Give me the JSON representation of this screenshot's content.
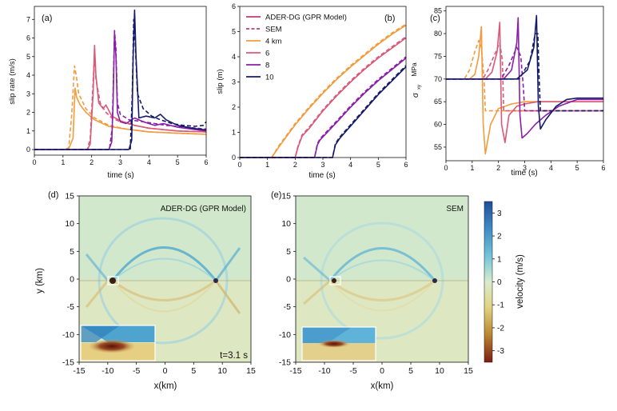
{
  "chart_data": [
    {
      "id": "a",
      "type": "line",
      "panel_label": "(a)",
      "xlabel": "time (s)",
      "ylabel": "slip rate (m/s)",
      "xlim": [
        0,
        6
      ],
      "ylim": [
        -0.3,
        7.7
      ],
      "xticks": [
        "0",
        "1",
        "2",
        "3",
        "4",
        "5",
        "6"
      ],
      "yticks": [
        "0",
        "1",
        "2",
        "3",
        "4",
        "5",
        "6",
        "7"
      ],
      "series": [
        {
          "method": "ADER-DG",
          "dist": "4 km",
          "color": "#f39b3c",
          "dash": false,
          "x": [
            0,
            1.05,
            1.2,
            1.35,
            1.42,
            1.48,
            1.6,
            1.8,
            2.1,
            2.6,
            3.2,
            4,
            5,
            6
          ],
          "y": [
            0,
            0,
            0.05,
            0.6,
            3.3,
            2.8,
            2.4,
            2.0,
            1.6,
            1.25,
            1.1,
            0.95,
            0.88,
            0.82
          ]
        },
        {
          "method": "SEM",
          "dist": "4 km",
          "color": "#f39b3c",
          "dash": true,
          "x": [
            0,
            1.05,
            1.2,
            1.3,
            1.4,
            1.46,
            1.55,
            1.8,
            2.1,
            2.6,
            3.2,
            4,
            5,
            6
          ],
          "y": [
            0,
            0,
            0.1,
            1.8,
            4.5,
            4.0,
            3.0,
            2.2,
            1.7,
            1.3,
            1.1,
            0.95,
            0.88,
            0.82
          ]
        },
        {
          "method": "ADER-DG",
          "dist": "6 km",
          "color": "#d95a78",
          "dash": false,
          "x": [
            0,
            1.85,
            1.95,
            2.05,
            2.1,
            2.15,
            2.25,
            2.4,
            2.5,
            2.7,
            3,
            3.5,
            4,
            5,
            6
          ],
          "y": [
            0,
            0,
            0.3,
            3.0,
            5.6,
            4.0,
            2.5,
            2.2,
            2.4,
            1.8,
            1.55,
            1.3,
            1.15,
            1.0,
            0.95
          ]
        },
        {
          "method": "SEM",
          "dist": "6 km",
          "color": "#d95a78",
          "dash": true,
          "x": [
            0,
            1.85,
            1.95,
            2.05,
            2.1,
            2.15,
            2.3,
            2.5,
            2.7,
            3,
            3.5,
            4,
            5,
            6
          ],
          "y": [
            0,
            0,
            0.6,
            3.6,
            5.2,
            3.8,
            2.5,
            2.0,
            1.7,
            1.5,
            1.3,
            1.15,
            1.0,
            0.95
          ]
        },
        {
          "method": "ADER-DG",
          "dist": "8 km",
          "color": "#8a1fa8",
          "dash": false,
          "x": [
            0,
            2.6,
            2.7,
            2.75,
            2.8,
            2.85,
            2.9,
            3.0,
            3.2,
            3.5,
            3.8,
            4.2,
            4.5,
            5,
            5.5,
            6
          ],
          "y": [
            0,
            0,
            0.4,
            2.5,
            6.3,
            5.0,
            2.0,
            1.5,
            1.4,
            1.7,
            1.5,
            1.3,
            1.4,
            1.2,
            1.1,
            1.0
          ]
        },
        {
          "method": "SEM",
          "dist": "8 km",
          "color": "#8a1fa8",
          "dash": true,
          "x": [
            0,
            2.62,
            2.72,
            2.8,
            2.85,
            2.9,
            3.0,
            3.3,
            3.8,
            4.2,
            4.6,
            5,
            6
          ],
          "y": [
            0,
            0,
            1.2,
            6.4,
            5.4,
            2.5,
            1.9,
            1.6,
            1.5,
            1.4,
            1.3,
            1.25,
            1.1
          ]
        },
        {
          "method": "ADER-DG",
          "dist": "10 km",
          "color": "#151b6b",
          "dash": false,
          "x": [
            0,
            3.3,
            3.4,
            3.45,
            3.5,
            3.55,
            3.65,
            3.9,
            4.2,
            4.4,
            4.6,
            5,
            5.5,
            6
          ],
          "y": [
            0,
            0,
            0.5,
            5.0,
            7.5,
            5.0,
            1.7,
            1.8,
            1.7,
            1.9,
            1.6,
            1.3,
            1.15,
            1.05
          ]
        },
        {
          "method": "SEM",
          "dist": "10 km",
          "color": "#151b6b",
          "dash": true,
          "x": [
            0,
            3.35,
            3.42,
            3.47,
            3.52,
            3.6,
            3.8,
            4.1,
            4.4,
            4.8,
            5.2,
            5.6,
            5.9,
            6
          ],
          "y": [
            0,
            0,
            3.0,
            7.0,
            5.8,
            3.0,
            2.2,
            1.8,
            1.6,
            1.4,
            1.3,
            1.25,
            1.3,
            1.5
          ]
        }
      ]
    },
    {
      "id": "b",
      "type": "line",
      "panel_label": "(b)",
      "xlabel": "time (s)",
      "ylabel": "slip (m)",
      "xlim": [
        0,
        6
      ],
      "ylim": [
        0,
        6
      ],
      "xticks": [
        "0",
        "1",
        "2",
        "3",
        "4",
        "5",
        "6"
      ],
      "yticks": [
        "0",
        "1",
        "2",
        "3",
        "4",
        "5",
        "6"
      ],
      "legend": {
        "placement": "top-left",
        "entries": [
          {
            "label": "ADER-DG (GPR Model)",
            "color": "#c0397f",
            "dash": false
          },
          {
            "label": "SEM",
            "color": "#c0397f",
            "dash": true
          },
          {
            "label": "4 km",
            "color": "#f39b3c",
            "dash": false
          },
          {
            "label": "6",
            "color": "#d95a78",
            "dash": false
          },
          {
            "label": "8",
            "color": "#8a1fa8",
            "dash": false
          },
          {
            "label": "10",
            "color": "#151b6b",
            "dash": false
          }
        ]
      },
      "series": [
        {
          "method": "ADER-DG",
          "dist": "4 km",
          "color": "#f39b3c",
          "dash": false,
          "x": [
            0,
            1.15,
            1.4,
            1.7,
            2,
            2.5,
            3,
            3.5,
            4,
            4.5,
            5,
            5.5,
            6
          ],
          "y": [
            0,
            0,
            0.4,
            0.85,
            1.3,
            1.95,
            2.55,
            3.1,
            3.6,
            4.05,
            4.5,
            4.9,
            5.25
          ]
        },
        {
          "method": "SEM",
          "dist": "4 km",
          "color": "#f39b3c",
          "dash": true,
          "x": [
            0,
            1.15,
            1.4,
            1.7,
            2,
            2.5,
            3,
            3.5,
            4,
            4.5,
            5,
            5.5,
            6
          ],
          "y": [
            0,
            0,
            0.45,
            0.9,
            1.35,
            2.0,
            2.6,
            3.15,
            3.65,
            4.1,
            4.55,
            4.95,
            5.3
          ]
        },
        {
          "method": "ADER-DG",
          "dist": "6 km",
          "color": "#d95a78",
          "dash": false,
          "x": [
            0,
            2.0,
            2.1,
            2.25,
            2.5,
            3,
            3.5,
            4,
            4.5,
            5,
            5.5,
            6
          ],
          "y": [
            0,
            0,
            0.4,
            0.85,
            1.15,
            1.85,
            2.45,
            3.0,
            3.5,
            3.95,
            4.35,
            4.75
          ]
        },
        {
          "method": "SEM",
          "dist": "6 km",
          "color": "#d95a78",
          "dash": true,
          "x": [
            0,
            2.0,
            2.1,
            2.25,
            2.5,
            3,
            3.5,
            4,
            4.5,
            5,
            5.5,
            6
          ],
          "y": [
            0,
            0,
            0.45,
            0.9,
            1.2,
            1.9,
            2.5,
            3.05,
            3.55,
            4.0,
            4.4,
            4.8
          ]
        },
        {
          "method": "ADER-DG",
          "dist": "8 km",
          "color": "#8a1fa8",
          "dash": false,
          "x": [
            0,
            2.7,
            2.8,
            2.9,
            3.2,
            3.5,
            4,
            4.5,
            5,
            5.5,
            6
          ],
          "y": [
            0,
            0,
            0.5,
            0.7,
            1.05,
            1.4,
            2.0,
            2.55,
            3.05,
            3.5,
            3.95
          ]
        },
        {
          "method": "SEM",
          "dist": "8 km",
          "color": "#8a1fa8",
          "dash": true,
          "x": [
            0,
            2.7,
            2.8,
            2.9,
            3.2,
            3.5,
            4,
            4.5,
            5,
            5.5,
            6
          ],
          "y": [
            0,
            0,
            0.55,
            0.75,
            1.1,
            1.45,
            2.05,
            2.6,
            3.1,
            3.55,
            4.0
          ]
        },
        {
          "method": "ADER-DG",
          "dist": "10 km",
          "color": "#151b6b",
          "dash": false,
          "x": [
            0,
            3.35,
            3.45,
            3.6,
            3.8,
            4.2,
            4.6,
            5,
            5.5,
            6
          ],
          "y": [
            0,
            0,
            0.5,
            0.75,
            1.0,
            1.5,
            2.0,
            2.5,
            3.05,
            3.6
          ]
        },
        {
          "method": "SEM",
          "dist": "10 km",
          "color": "#151b6b",
          "dash": true,
          "x": [
            0,
            3.35,
            3.45,
            3.6,
            3.8,
            4.2,
            4.6,
            5,
            5.5,
            6
          ],
          "y": [
            0,
            0,
            0.55,
            0.8,
            1.05,
            1.55,
            2.05,
            2.55,
            3.1,
            3.65
          ]
        }
      ]
    },
    {
      "id": "c",
      "type": "line",
      "panel_label": "(c)",
      "xlabel": "time (s)",
      "ylabel": "MPa",
      "ylabel_symbol": "σ",
      "ylabel_subscript": "xy",
      "xlim": [
        0,
        6
      ],
      "ylim": [
        52,
        86
      ],
      "xticks": [
        "0",
        "1",
        "2",
        "3",
        "4",
        "5",
        "6"
      ],
      "yticks": [
        "55",
        "60",
        "65",
        "70",
        "75",
        "80",
        "85"
      ],
      "series": [
        {
          "method": "ADER-DG",
          "dist": "4 km",
          "color": "#f39b3c",
          "dash": false,
          "x": [
            0,
            0.9,
            1.1,
            1.25,
            1.35,
            1.42,
            1.5,
            1.7,
            2,
            2.5,
            3,
            4,
            5,
            6
          ],
          "y": [
            70,
            70,
            71,
            75,
            81.5,
            60,
            53.5,
            60,
            63.5,
            64.5,
            65,
            65,
            65,
            65
          ]
        },
        {
          "method": "SEM",
          "dist": "4 km",
          "color": "#f39b3c",
          "dash": true,
          "x": [
            0,
            0.7,
            0.9,
            1.1,
            1.25,
            1.35,
            1.45,
            1.5,
            6
          ],
          "y": [
            70,
            70,
            72,
            76,
            78.5,
            77,
            70,
            63,
            63
          ]
        },
        {
          "method": "ADER-DG",
          "dist": "6 km",
          "color": "#d95a78",
          "dash": false,
          "x": [
            0,
            1.5,
            1.75,
            1.95,
            2.05,
            2.12,
            2.25,
            2.4,
            2.7,
            3,
            3.5,
            4,
            6
          ],
          "y": [
            70,
            70,
            71.5,
            76,
            82.5,
            60,
            56,
            62,
            64,
            64.5,
            65,
            65,
            65
          ]
        },
        {
          "method": "SEM",
          "dist": "6 km",
          "color": "#d95a78",
          "dash": true,
          "x": [
            0,
            1.4,
            1.6,
            1.9,
            2.05,
            2.15,
            2.2,
            6
          ],
          "y": [
            70,
            70,
            72,
            76,
            78,
            74,
            63,
            63
          ]
        },
        {
          "method": "ADER-DG",
          "dist": "8 km",
          "color": "#8a1fa8",
          "dash": false,
          "x": [
            0,
            2.2,
            2.5,
            2.7,
            2.75,
            2.82,
            2.9,
            3.1,
            3.4,
            3.8,
            4.3,
            5,
            6
          ],
          "y": [
            70,
            70,
            72,
            78,
            83.5,
            62,
            57,
            58,
            60,
            62,
            64,
            65.5,
            65.5
          ]
        },
        {
          "method": "SEM",
          "dist": "8 km",
          "color": "#8a1fa8",
          "dash": true,
          "x": [
            0,
            2.1,
            2.4,
            2.7,
            2.85,
            2.95,
            3.0,
            6
          ],
          "y": [
            70,
            70,
            73,
            77,
            75,
            68,
            63,
            63
          ]
        },
        {
          "method": "ADER-DG",
          "dist": "10 km",
          "color": "#151b6b",
          "dash": false,
          "x": [
            0,
            2.7,
            3.1,
            3.35,
            3.45,
            3.52,
            3.6,
            3.8,
            4.2,
            4.6,
            5,
            6
          ],
          "y": [
            70,
            70,
            72,
            77,
            84,
            64,
            59,
            61,
            64,
            65.5,
            65.8,
            65.8
          ]
        },
        {
          "method": "SEM",
          "dist": "10 km",
          "color": "#151b6b",
          "dash": true,
          "x": [
            0,
            2.8,
            3.2,
            3.4,
            3.5,
            3.55,
            3.6,
            6
          ],
          "y": [
            70,
            70,
            74,
            80,
            80,
            70,
            63,
            63
          ]
        }
      ]
    },
    {
      "id": "d",
      "type": "heatmap",
      "panel_label": "(d)",
      "title_in_plot": "ADER-DG (GPR Model)",
      "annotation": "t=3.1 s",
      "xlabel": "x(km)",
      "ylabel": "y (km)",
      "xlim": [
        -15,
        15
      ],
      "ylim": [
        -15,
        15
      ],
      "xticks": [
        "-15",
        "-10",
        "-5",
        "0",
        "5",
        "10",
        "15"
      ],
      "yticks": [
        "15",
        "10",
        "5",
        "0",
        "-5",
        "-10",
        "-15"
      ]
    },
    {
      "id": "e",
      "type": "heatmap",
      "panel_label": "(e)",
      "title_in_plot": "SEM",
      "xlabel": "x(km)",
      "xlim": [
        -15,
        15
      ],
      "ylim": [
        -15,
        15
      ],
      "xticks": [
        "-15",
        "-10",
        "-5",
        "0",
        "5",
        "10",
        "15"
      ],
      "yticks": [
        "15",
        "10",
        "5",
        "0",
        "-5",
        "-10",
        "-15"
      ],
      "colorbar": {
        "label": "velocity (m/s)",
        "range": [
          -3.5,
          3.5
        ],
        "ticks": [
          "3",
          "2",
          "1",
          "0",
          "-1",
          "-2",
          "-3"
        ],
        "colors_top_to_bottom": [
          "#1f4e9a",
          "#3f8cc4",
          "#74c4d8",
          "#d8eccd",
          "#e3d281",
          "#b8862e",
          "#7e1c14"
        ]
      }
    }
  ]
}
